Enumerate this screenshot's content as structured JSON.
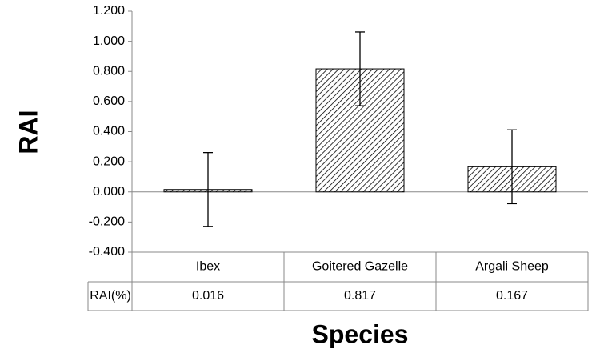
{
  "chart_data": {
    "type": "bar",
    "categories": [
      "Ibex",
      "Goitered Gazelle",
      "Argali Sheep"
    ],
    "values": [
      0.016,
      0.817,
      0.167
    ],
    "errors": [
      0.245,
      0.245,
      0.245
    ],
    "ylim": [
      -0.4,
      1.2
    ],
    "yticks": [
      {
        "value": -0.4,
        "label": "-0.400"
      },
      {
        "value": -0.2,
        "label": "-0.200"
      },
      {
        "value": 0,
        "label": "0.000"
      },
      {
        "value": 0.2,
        "label": "0.200"
      },
      {
        "value": 0.4,
        "label": "0.400"
      },
      {
        "value": 0.6,
        "label": "0.600"
      },
      {
        "value": 0.8,
        "label": "0.800"
      },
      {
        "value": 1.0,
        "label": "1.000"
      },
      {
        "value": 1.2,
        "label": "1.200"
      }
    ],
    "y_label": "RAI",
    "x_label": "Species",
    "table_row_label": "RAI(%)",
    "color": "#000000",
    "hatch": true
  }
}
